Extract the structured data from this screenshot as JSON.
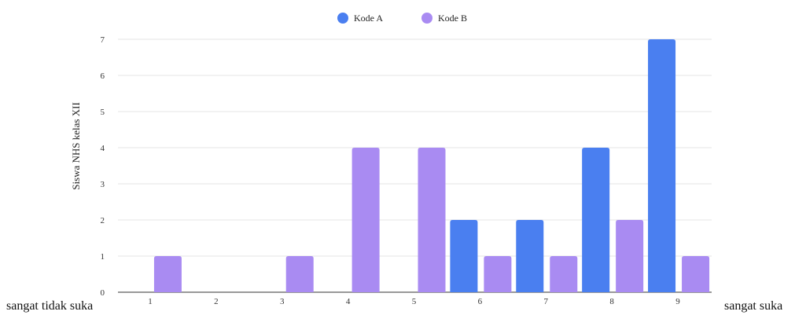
{
  "chart_data": {
    "type": "bar",
    "categories": [
      "1",
      "2",
      "3",
      "4",
      "5",
      "6",
      "7",
      "8",
      "9"
    ],
    "series": [
      {
        "name": "Kode A",
        "color": "#4A7FF0",
        "values": [
          0,
          0,
          0,
          0,
          0,
          2,
          2,
          4,
          7
        ]
      },
      {
        "name": "Kode B",
        "color": "#A98BF2",
        "values": [
          1,
          0,
          1,
          4,
          4,
          1,
          1,
          2,
          1
        ]
      }
    ],
    "title": "",
    "xlabel": "",
    "ylabel": "Siswa NHS kelas XII",
    "ylim": [
      0,
      7
    ],
    "yticks": [
      0,
      1,
      2,
      3,
      4,
      5,
      6,
      7
    ],
    "grid": true,
    "legend_position": "top-center",
    "x_start_label": "sangat tidak suka",
    "x_end_label": "sangat suka"
  }
}
